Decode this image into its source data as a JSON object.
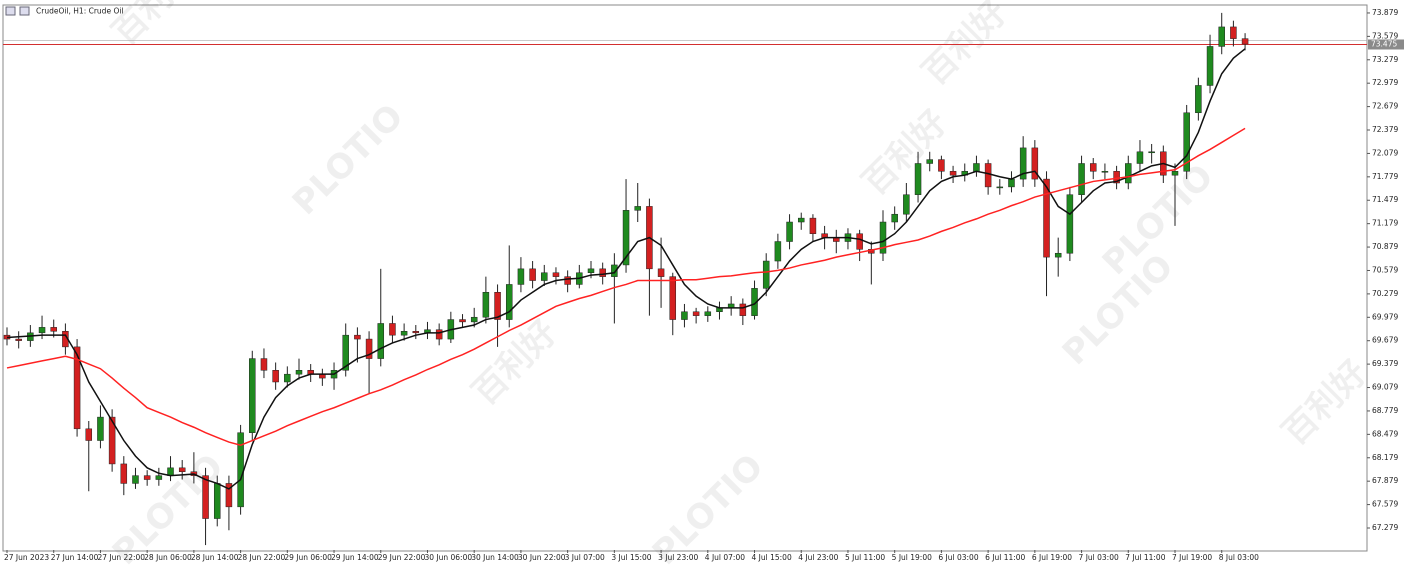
{
  "chart_data": {
    "type": "candlestick",
    "title": "CrudeOil, H1:  Crude Oil",
    "watermark": {
      "brand": "PLOTIO",
      "cn": "百利好"
    },
    "categories": [
      "27 Jun 2023",
      null,
      null,
      null,
      "27 Jun 14:00",
      null,
      null,
      null,
      "27 Jun 22:00",
      null,
      null,
      null,
      "28 Jun 06:00",
      null,
      null,
      null,
      "28 Jun 14:00",
      null,
      null,
      null,
      "28 Jun 22:00",
      null,
      null,
      null,
      "29 Jun 06:00",
      null,
      null,
      null,
      "29 Jun 14:00",
      null,
      null,
      null,
      "29 Jun 22:00",
      null,
      null,
      null,
      "30 Jun 06:00",
      null,
      null,
      null,
      "30 Jun 14:00",
      null,
      null,
      null,
      "30 Jun 22:00",
      null,
      null,
      null,
      "3 Jul 07:00",
      null,
      null,
      null,
      "3 Jul 15:00",
      null,
      null,
      null,
      "3 Jul 23:00",
      null,
      null,
      null,
      "4 Jul 07:00",
      null,
      null,
      null,
      "4 Jul 15:00",
      null,
      null,
      null,
      "4 Jul 23:00",
      null,
      null,
      null,
      "5 Jul 11:00",
      null,
      null,
      null,
      "5 Jul 19:00",
      null,
      null,
      null,
      "6 Jul 03:00",
      null,
      null,
      null,
      "6 Jul 11:00",
      null,
      null,
      null,
      "6 Jul 19:00",
      null,
      null,
      null,
      "7 Jul 03:00",
      null,
      null,
      null,
      "7 Jul 11:00",
      null,
      null,
      null,
      "7 Jul 19:00",
      null,
      null,
      null,
      "8 Jul 03:00",
      null,
      null
    ],
    "open": [
      69.75,
      69.7,
      69.68,
      69.78,
      69.85,
      69.8,
      69.6,
      68.55,
      68.4,
      68.7,
      68.1,
      67.85,
      67.95,
      67.9,
      67.95,
      68.05,
      68.0,
      67.95,
      67.4,
      67.85,
      67.55,
      68.5,
      69.45,
      69.3,
      69.15,
      69.25,
      69.3,
      69.25,
      69.2,
      69.3,
      69.75,
      69.7,
      69.45,
      69.9,
      69.75,
      69.8,
      69.78,
      69.82,
      69.7,
      69.95,
      69.92,
      69.98,
      70.3,
      69.95,
      70.4,
      70.6,
      70.45,
      70.55,
      70.5,
      70.4,
      70.55,
      70.6,
      70.5,
      70.65,
      71.35,
      71.4,
      70.6,
      70.5,
      69.95,
      70.05,
      70.0,
      70.05,
      70.1,
      70.15,
      70.0,
      70.35,
      70.7,
      70.95,
      71.2,
      71.25,
      71.05,
      71.0,
      70.95,
      71.05,
      70.85,
      70.8,
      71.2,
      71.3,
      71.55,
      71.95,
      72.0,
      71.85,
      71.8,
      71.85,
      71.95,
      71.65,
      71.65,
      71.75,
      72.15,
      71.75,
      70.75,
      70.8,
      71.55,
      71.95,
      71.85,
      71.85,
      71.7,
      71.95,
      72.1,
      72.1,
      71.8,
      71.85,
      72.6,
      72.95,
      73.45,
      73.7,
      73.55
    ],
    "high": [
      69.85,
      69.8,
      69.88,
      70.0,
      69.95,
      69.9,
      69.7,
      68.65,
      68.85,
      68.8,
      68.2,
      68.05,
      68.02,
      68.05,
      68.2,
      68.15,
      68.25,
      68.05,
      67.95,
      67.95,
      68.6,
      69.55,
      69.58,
      69.4,
      69.35,
      69.45,
      69.38,
      69.32,
      69.4,
      69.9,
      69.85,
      69.8,
      70.6,
      70.0,
      69.9,
      69.88,
      69.92,
      69.9,
      70.05,
      70.02,
      70.1,
      70.5,
      70.4,
      70.9,
      70.75,
      70.7,
      70.65,
      70.62,
      70.58,
      70.65,
      70.7,
      70.68,
      70.8,
      71.75,
      71.7,
      71.5,
      71.0,
      70.55,
      70.15,
      70.1,
      70.12,
      70.18,
      70.25,
      70.22,
      70.45,
      70.8,
      71.05,
      71.3,
      71.32,
      71.3,
      71.15,
      71.1,
      71.12,
      71.1,
      70.95,
      71.35,
      71.4,
      71.7,
      72.1,
      72.1,
      72.05,
      71.92,
      71.95,
      72.05,
      72.0,
      71.75,
      71.85,
      72.3,
      72.25,
      71.85,
      71.0,
      71.65,
      72.05,
      72.02,
      71.95,
      71.92,
      72.05,
      72.25,
      72.2,
      72.18,
      71.95,
      72.7,
      73.05,
      73.6,
      73.88,
      73.78,
      73.62
    ],
    "low": [
      69.62,
      69.58,
      69.6,
      69.7,
      69.72,
      69.5,
      68.45,
      67.75,
      68.3,
      68.0,
      67.7,
      67.78,
      67.82,
      67.82,
      67.88,
      67.9,
      67.85,
      67.06,
      67.3,
      67.25,
      67.45,
      68.4,
      69.2,
      69.05,
      69.08,
      69.18,
      69.15,
      69.1,
      69.05,
      69.22,
      69.4,
      69.0,
      69.35,
      69.65,
      69.68,
      69.7,
      69.7,
      69.62,
      69.65,
      69.85,
      69.85,
      69.9,
      69.6,
      69.85,
      70.3,
      70.35,
      70.38,
      70.4,
      70.3,
      70.35,
      70.48,
      70.4,
      69.9,
      70.55,
      71.2,
      70.0,
      70.1,
      69.75,
      69.85,
      69.9,
      69.92,
      69.95,
      70.0,
      69.88,
      69.95,
      70.25,
      70.6,
      70.85,
      71.1,
      70.95,
      70.85,
      70.8,
      70.85,
      70.7,
      70.4,
      70.7,
      71.1,
      71.2,
      71.45,
      71.85,
      71.75,
      71.7,
      71.72,
      71.78,
      71.55,
      71.55,
      71.58,
      71.65,
      71.65,
      70.25,
      70.5,
      70.7,
      71.45,
      71.75,
      71.75,
      71.62,
      71.62,
      71.85,
      71.95,
      71.7,
      71.15,
      71.75,
      72.5,
      72.85,
      73.35,
      73.45,
      73.4
    ],
    "close": [
      69.7,
      69.68,
      69.78,
      69.85,
      69.8,
      69.6,
      68.55,
      68.4,
      68.7,
      68.1,
      67.85,
      67.95,
      67.9,
      67.95,
      68.05,
      68.0,
      67.95,
      67.4,
      67.85,
      67.55,
      68.5,
      69.45,
      69.3,
      69.15,
      69.25,
      69.3,
      69.25,
      69.2,
      69.3,
      69.75,
      69.7,
      69.45,
      69.9,
      69.75,
      69.8,
      69.78,
      69.82,
      69.7,
      69.95,
      69.92,
      69.98,
      70.3,
      69.95,
      70.4,
      70.6,
      70.45,
      70.55,
      70.5,
      70.4,
      70.55,
      70.6,
      70.5,
      70.65,
      71.35,
      71.4,
      70.6,
      70.5,
      69.95,
      70.05,
      70.0,
      70.05,
      70.1,
      70.15,
      70.0,
      70.35,
      70.7,
      70.95,
      71.2,
      71.25,
      71.05,
      71.0,
      70.95,
      71.05,
      70.85,
      70.8,
      71.2,
      71.3,
      71.55,
      71.95,
      72.0,
      71.85,
      71.8,
      71.85,
      71.95,
      71.65,
      71.65,
      71.75,
      72.15,
      71.75,
      70.75,
      70.8,
      71.55,
      71.95,
      71.85,
      71.85,
      71.7,
      71.95,
      72.1,
      72.1,
      71.8,
      71.85,
      72.6,
      72.95,
      73.45,
      73.7,
      73.55,
      73.48
    ],
    "up_color": "#1f8a1f",
    "down_color": "#d32020",
    "wick_color": "#222222",
    "lines": [
      {
        "color": "#111111",
        "values": [
          69.72,
          69.73,
          69.74,
          69.75,
          69.75,
          69.75,
          69.5,
          69.15,
          68.9,
          68.65,
          68.4,
          68.2,
          68.05,
          67.98,
          67.95,
          67.96,
          67.97,
          67.9,
          67.85,
          67.78,
          67.9,
          68.35,
          68.7,
          68.95,
          69.1,
          69.2,
          69.25,
          69.25,
          69.25,
          69.35,
          69.45,
          69.5,
          69.58,
          69.65,
          69.7,
          69.75,
          69.78,
          69.78,
          69.82,
          69.85,
          69.88,
          69.95,
          69.98,
          70.05,
          70.2,
          70.3,
          70.4,
          70.45,
          70.47,
          70.48,
          70.52,
          70.53,
          70.55,
          70.75,
          70.95,
          71.0,
          70.9,
          70.65,
          70.4,
          70.25,
          70.15,
          70.1,
          70.1,
          70.1,
          70.15,
          70.3,
          70.5,
          70.7,
          70.85,
          70.95,
          71.0,
          71.0,
          71.0,
          70.98,
          70.92,
          70.95,
          71.05,
          71.2,
          71.4,
          71.6,
          71.72,
          71.78,
          71.8,
          71.85,
          71.82,
          71.78,
          71.75,
          71.82,
          71.85,
          71.65,
          71.4,
          71.3,
          71.45,
          71.6,
          71.7,
          71.72,
          71.78,
          71.85,
          71.92,
          71.95,
          71.9,
          72.05,
          72.35,
          72.75,
          73.1,
          73.3,
          73.42
        ]
      },
      {
        "color": "#ff2222",
        "values": [
          69.33,
          69.36,
          69.39,
          69.42,
          69.45,
          69.48,
          69.44,
          69.38,
          69.32,
          69.2,
          69.07,
          68.95,
          68.82,
          68.76,
          68.7,
          68.63,
          68.57,
          68.5,
          68.44,
          68.38,
          68.34,
          68.4,
          68.46,
          68.52,
          68.59,
          68.65,
          68.71,
          68.77,
          68.82,
          68.88,
          68.94,
          69.0,
          69.05,
          69.11,
          69.18,
          69.24,
          69.31,
          69.37,
          69.44,
          69.5,
          69.57,
          69.65,
          69.73,
          69.81,
          69.88,
          69.96,
          70.04,
          70.12,
          70.17,
          70.22,
          70.26,
          70.31,
          70.36,
          70.4,
          70.45,
          70.45,
          70.45,
          70.45,
          70.46,
          70.46,
          70.48,
          70.5,
          70.51,
          70.53,
          70.55,
          70.56,
          70.58,
          70.61,
          70.65,
          70.68,
          70.71,
          70.75,
          70.78,
          70.81,
          70.84,
          70.87,
          70.91,
          70.94,
          70.97,
          71.02,
          71.08,
          71.13,
          71.19,
          71.24,
          71.3,
          71.35,
          71.41,
          71.46,
          71.52,
          71.56,
          71.6,
          71.64,
          71.68,
          71.72,
          71.74,
          71.76,
          71.78,
          71.81,
          71.83,
          71.85,
          71.87,
          71.96,
          72.05,
          72.13,
          72.22,
          72.31,
          72.4
        ]
      }
    ],
    "current_price": 73.475,
    "price_line_color": "#d32f2f",
    "ylim": [
      66.997,
      73.981
    ],
    "yticks": [
      67.279,
      67.579,
      67.879,
      68.179,
      68.479,
      68.779,
      69.079,
      69.379,
      69.679,
      69.979,
      70.279,
      70.579,
      70.879,
      71.179,
      71.479,
      71.779,
      72.079,
      72.379,
      72.679,
      72.979,
      73.279,
      73.579,
      73.879
    ],
    "grid": false
  }
}
